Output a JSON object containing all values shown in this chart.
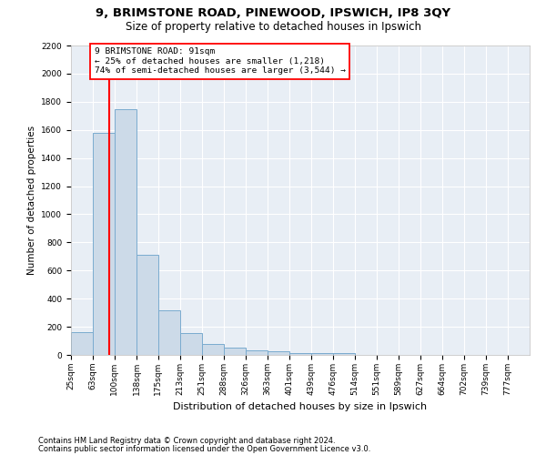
{
  "title1": "9, BRIMSTONE ROAD, PINEWOOD, IPSWICH, IP8 3QY",
  "title2": "Size of property relative to detached houses in Ipswich",
  "xlabel": "Distribution of detached houses by size in Ipswich",
  "ylabel": "Number of detached properties",
  "footnote1": "Contains HM Land Registry data © Crown copyright and database right 2024.",
  "footnote2": "Contains public sector information licensed under the Open Government Licence v3.0.",
  "annotation_line1": "9 BRIMSTONE ROAD: 91sqm",
  "annotation_line2": "← 25% of detached houses are smaller (1,218)",
  "annotation_line3": "74% of semi-detached houses are larger (3,544) →",
  "bar_color": "#ccdae8",
  "bar_edge_color": "#7aabcf",
  "red_line_value": 91,
  "categories": [
    "25sqm",
    "63sqm",
    "100sqm",
    "138sqm",
    "175sqm",
    "213sqm",
    "251sqm",
    "288sqm",
    "326sqm",
    "363sqm",
    "401sqm",
    "439sqm",
    "476sqm",
    "514sqm",
    "551sqm",
    "589sqm",
    "627sqm",
    "664sqm",
    "702sqm",
    "739sqm",
    "777sqm"
  ],
  "bin_starts": [
    25,
    63,
    100,
    138,
    175,
    213,
    251,
    288,
    326,
    363,
    401,
    439,
    476,
    514,
    551,
    589,
    627,
    664,
    702,
    739,
    777
  ],
  "values": [
    160,
    1580,
    1750,
    710,
    320,
    155,
    80,
    55,
    30,
    25,
    15,
    10,
    10,
    0,
    0,
    0,
    0,
    0,
    0,
    0,
    0
  ],
  "ylim": [
    0,
    2200
  ],
  "yticks": [
    0,
    200,
    400,
    600,
    800,
    1000,
    1200,
    1400,
    1600,
    1800,
    2000,
    2200
  ],
  "background_color": "#e8eef5",
  "grid_color": "#ffffff",
  "title1_fontsize": 9.5,
  "title2_fontsize": 8.5,
  "ylabel_fontsize": 7.5,
  "xlabel_fontsize": 8,
  "tick_fontsize": 6.5,
  "footnote_fontsize": 6
}
